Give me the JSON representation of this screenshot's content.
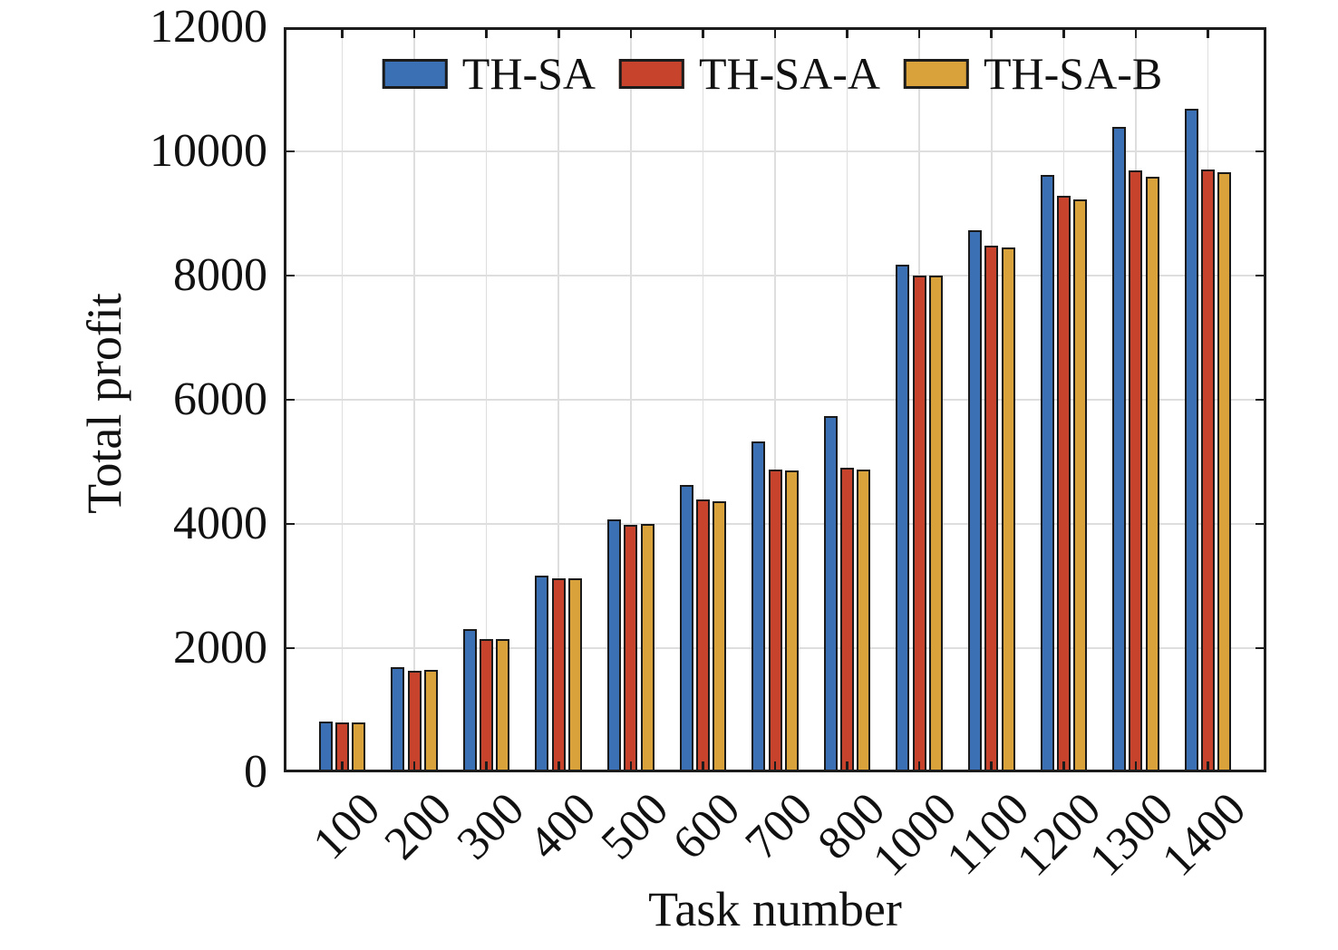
{
  "chart_data": {
    "type": "bar",
    "title": "",
    "xlabel": "Task number",
    "ylabel": "Total profit",
    "categories": [
      "100",
      "200",
      "300",
      "400",
      "500",
      "600",
      "700",
      "800",
      "1000",
      "1100",
      "1200",
      "1300",
      "1400"
    ],
    "series": [
      {
        "name": "TH-SA",
        "color": "#3C70B5",
        "values": [
          820,
          1700,
          2300,
          3170,
          4070,
          4630,
          5330,
          5740,
          8180,
          8730,
          9620,
          10390,
          10690
        ]
      },
      {
        "name": "TH-SA-A",
        "color": "#C7432C",
        "values": [
          810,
          1640,
          2150,
          3120,
          3980,
          4390,
          4880,
          4900,
          8000,
          8480,
          9280,
          9690,
          9710
        ]
      },
      {
        "name": "TH-SA-B",
        "color": "#D9A23B",
        "values": [
          810,
          1650,
          2150,
          3120,
          4000,
          4370,
          4860,
          4870,
          8000,
          8450,
          9220,
          9590,
          9670
        ]
      }
    ],
    "ylim": [
      0,
      12000
    ],
    "yticks": [
      0,
      2000,
      4000,
      6000,
      8000,
      10000,
      12000
    ],
    "grid": true,
    "legend_position": "top-inside",
    "bar_edge_color": "#1a1a1a",
    "axis_color": "#1c1c1c",
    "grid_color": "#dedede"
  }
}
